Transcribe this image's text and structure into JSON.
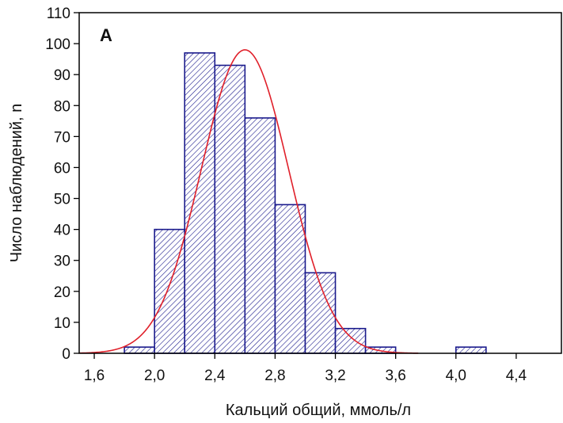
{
  "chart_data": {
    "type": "bar",
    "panel_label": "A",
    "xlabel": "Кальций общий, ммоль/л",
    "ylabel": "Число наблюдений, n",
    "xlim": [
      1.5,
      4.7
    ],
    "ylim": [
      0,
      110
    ],
    "x_ticks": [
      {
        "value": 1.6,
        "label": "1,6"
      },
      {
        "value": 2.0,
        "label": "2,0"
      },
      {
        "value": 2.4,
        "label": "2,4"
      },
      {
        "value": 2.8,
        "label": "2,8"
      },
      {
        "value": 3.2,
        "label": "3,2"
      },
      {
        "value": 3.6,
        "label": "3,6"
      },
      {
        "value": 4.0,
        "label": "4,0"
      },
      {
        "value": 4.4,
        "label": "4,4"
      }
    ],
    "y_ticks": [
      0,
      10,
      20,
      30,
      40,
      50,
      60,
      70,
      80,
      90,
      100,
      110
    ],
    "bin_width": 0.2,
    "bins": [
      {
        "start": 1.8,
        "end": 2.0,
        "count": 2
      },
      {
        "start": 2.0,
        "end": 2.2,
        "count": 40
      },
      {
        "start": 2.2,
        "end": 2.4,
        "count": 97
      },
      {
        "start": 2.4,
        "end": 2.6,
        "count": 93
      },
      {
        "start": 2.6,
        "end": 2.8,
        "count": 76
      },
      {
        "start": 2.8,
        "end": 3.0,
        "count": 48
      },
      {
        "start": 3.0,
        "end": 3.2,
        "count": 26
      },
      {
        "start": 3.2,
        "end": 3.4,
        "count": 8
      },
      {
        "start": 3.4,
        "end": 3.6,
        "count": 2
      },
      {
        "start": 4.0,
        "end": 4.2,
        "count": 2
      }
    ],
    "normal_fit": {
      "mean": 2.6,
      "sd": 0.29,
      "peak": 98,
      "x_range": [
        1.5,
        3.75
      ]
    },
    "grid": false,
    "colors": {
      "bar_edge": "#1a1a8c",
      "hatch": "#1a1a8c",
      "bar_fill": "#ffffff",
      "fit_line": "#e0202a",
      "axis": "#000000"
    }
  }
}
